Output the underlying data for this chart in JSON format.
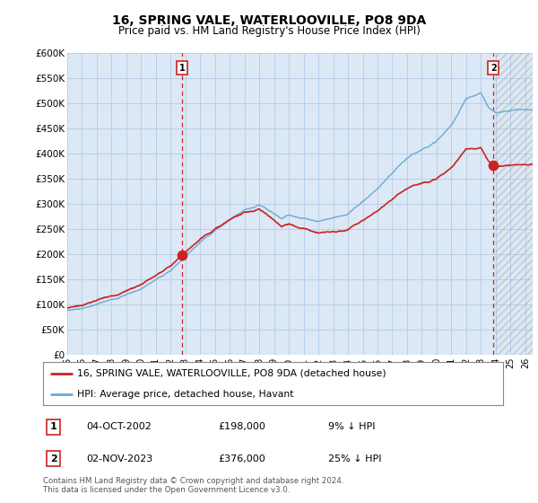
{
  "title": "16, SPRING VALE, WATERLOOVILLE, PO8 9DA",
  "subtitle": "Price paid vs. HM Land Registry's House Price Index (HPI)",
  "ylim": [
    0,
    600000
  ],
  "yticks": [
    0,
    50000,
    100000,
    150000,
    200000,
    250000,
    300000,
    350000,
    400000,
    450000,
    500000,
    550000,
    600000
  ],
  "xlim_start": 1995.0,
  "xlim_end": 2026.5,
  "background_color": "#ffffff",
  "plot_bg_color": "#dce8f5",
  "grid_color": "#b8cfe8",
  "hpi_color": "#6aaad4",
  "price_color": "#cc2222",
  "dashed_color": "#cc2222",
  "marker1_date": 2002.77,
  "marker1_price": 198000,
  "marker2_date": 2023.84,
  "marker2_price": 376000,
  "legend_label1": "16, SPRING VALE, WATERLOOVILLE, PO8 9DA (detached house)",
  "legend_label2": "HPI: Average price, detached house, Havant",
  "annotation1_date": "04-OCT-2002",
  "annotation1_price": "£198,000",
  "annotation1_pct": "9% ↓ HPI",
  "annotation2_date": "02-NOV-2023",
  "annotation2_price": "£376,000",
  "annotation2_pct": "25% ↓ HPI",
  "footer": "Contains HM Land Registry data © Crown copyright and database right 2024.\nThis data is licensed under the Open Government Licence v3.0."
}
